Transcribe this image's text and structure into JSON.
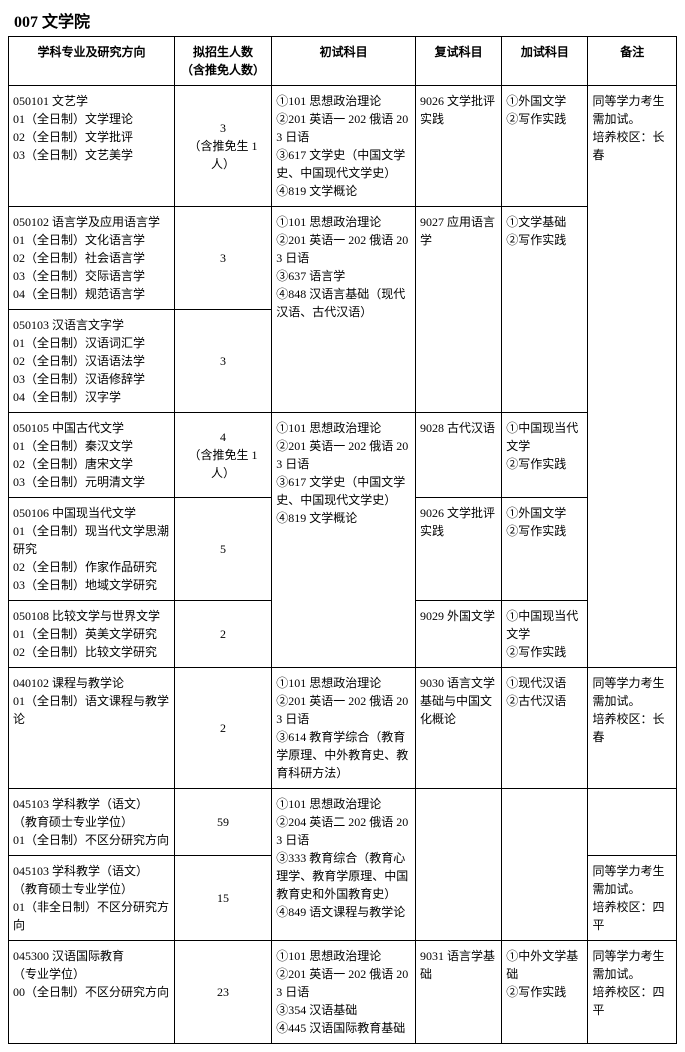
{
  "page_title": "007 文学院",
  "headers": {
    "major": "学科专业及研究方向",
    "quota": "拟招生人数\n（含推免人数）",
    "exam1": "初试科目",
    "exam2": "复试科目",
    "extra": "加试科目",
    "note": "备注"
  },
  "rows": [
    {
      "major": "050101 文艺学\n01（全日制）文学理论\n02（全日制）文学批评\n03（全日制）文艺美学",
      "quota": "3\n（含推免生 1 人）",
      "exam1": "①101 思想政治理论\n②201 英语一 202 俄语 203 日语\n③617 文学史（中国文学史、中国现代文学史）\n④819 文学概论",
      "exam2": "9026  文学批评实践",
      "extra": "①外国文学\n②写作实践",
      "note": "同等学力考生需加试。\n培养校区：长春",
      "note_rowspan": 6
    },
    {
      "major": "050102 语言学及应用语言学\n01（全日制）文化语言学\n02（全日制）社会语言学\n03（全日制）交际语言学\n04（全日制）规范语言学",
      "quota": "3",
      "exam1": "①101 思想政治理论\n②201 英语一 202 俄语 203 日语\n③637 语言学\n④848 汉语言基础（现代汉语、古代汉语）",
      "exam1_rowspan": 2,
      "exam2": "9027  应用语言学",
      "exam2_rowspan": 2,
      "extra": "①文学基础\n②写作实践",
      "extra_rowspan": 2
    },
    {
      "major": "050103 汉语言文字学\n01（全日制）汉语词汇学\n02（全日制）汉语语法学\n03（全日制）汉语修辞学\n04（全日制）汉字学",
      "quota": "3"
    },
    {
      "major": "050105 中国古代文学\n01（全日制）秦汉文学\n02（全日制）唐宋文学\n03（全日制）元明清文学",
      "quota": "4\n（含推免生 1 人）",
      "exam1": "①101 思想政治理论\n②201 英语一 202 俄语 203 日语\n③617 文学史（中国文学史、中国现代文学史）\n④819 文学概论",
      "exam1_rowspan": 3,
      "exam2": "9028  古代汉语",
      "extra": "①中国现当代文学\n②写作实践"
    },
    {
      "major": "050106 中国现当代文学\n01（全日制）现当代文学思潮研究\n02（全日制）作家作品研究\n03（全日制）地域文学研究",
      "quota": "5",
      "exam2": "9026  文学批评实践",
      "extra": "①外国文学\n②写作实践"
    },
    {
      "major": "050108 比较文学与世界文学\n01（全日制）英美文学研究\n02（全日制）比较文学研究",
      "quota": "2",
      "exam2": "9029   外国文学",
      "extra": "①中国现当代文学\n②写作实践"
    },
    {
      "major": "040102 课程与教学论\n01（全日制）语文课程与教学论",
      "quota": "2",
      "exam1": "①101 思想政治理论\n②201 英语一 202 俄语 203 日语\n③614 教育学综合（教育学原理、中外教育史、教育科研方法）",
      "exam2": "9030  语言文学基础与中国文化概论",
      "extra": "①现代汉语\n②古代汉语",
      "note": "同等学力考生需加试。\n培养校区：长春"
    },
    {
      "major": "045103 学科教学（语文）\n（教育硕士专业学位）\n01（全日制）不区分研究方向",
      "quota": "59",
      "exam1": "①101 思想政治理论\n②204 英语二 202 俄语 203 日语\n③333 教育综合（教育心理学、教育学原理、中国教育史和外国教育史）\n④849 语文课程与教学论",
      "exam1_rowspan": 2,
      "exam2": "",
      "exam2_rowspan": 2,
      "extra": "",
      "extra_rowspan": 2,
      "note": ""
    },
    {
      "major": "045103 学科教学（语文）\n（教育硕士专业学位）\n01（非全日制）不区分研究方向",
      "quota": "15",
      "note": "同等学力考生需加试。\n培养校区：四平"
    },
    {
      "major": "045300 汉语国际教育\n（专业学位）\n00（全日制）不区分研究方向",
      "quota": "23",
      "exam1": "①101 思想政治理论\n②201 英语一 202 俄语 203 日语\n③354 汉语基础\n④445 汉语国际教育基础",
      "exam2": "9031  语言学基础",
      "extra": "①中外文学基础\n②写作实践",
      "note": "同等学力考生需加试。\n培养校区：四平"
    }
  ]
}
